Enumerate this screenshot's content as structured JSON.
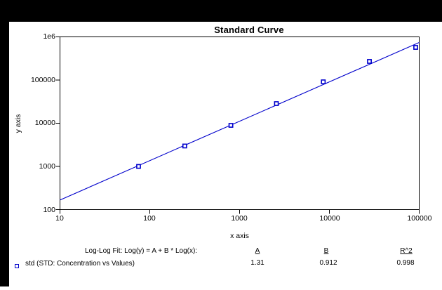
{
  "window": {
    "border_color": "#000000",
    "panel_color": "#ffffff"
  },
  "title": "Standard Curve",
  "axes": {
    "x_label": "x axis",
    "y_label": "y axis",
    "x_range": [
      10,
      100000
    ],
    "y_range": [
      100,
      1000000
    ],
    "x_ticks": [
      {
        "label": "10",
        "value": 10
      },
      {
        "label": "100",
        "value": 100
      },
      {
        "label": "1000",
        "value": 1000
      },
      {
        "label": "10000",
        "value": 10000
      },
      {
        "label": "100000",
        "value": 100000
      }
    ],
    "y_ticks": [
      {
        "label": "1e6",
        "value": 1000000
      },
      {
        "label": "100000",
        "value": 100000
      },
      {
        "label": "10000",
        "value": 10000
      },
      {
        "label": "1000",
        "value": 1000
      },
      {
        "label": "100",
        "value": 100
      }
    ]
  },
  "chart_data": {
    "type": "scatter",
    "title": "Standard Curve",
    "xlabel": "x axis",
    "ylabel": "y axis",
    "x_scale": "log",
    "y_scale": "log",
    "xlim": [
      10,
      100000
    ],
    "ylim": [
      100,
      1000000
    ],
    "grid": false,
    "series": [
      {
        "name": "std",
        "marker": "open-square",
        "color": "#0000cc",
        "x": [
          75,
          245,
          800,
          2570,
          8550,
          27900,
          91400
        ],
        "y": [
          1000,
          2970,
          8930,
          28500,
          91000,
          270000,
          570000
        ]
      }
    ],
    "fit": {
      "type": "log-log",
      "equation": "Log(y) = A + B * Log(x)",
      "A": 1.31,
      "B": 0.912,
      "R2": 0.998,
      "color": "#0000cc"
    }
  },
  "footer": {
    "fit_label": "Log-Log Fit: Log(y) = A + B * Log(x):",
    "columns": [
      {
        "header": "A",
        "value": "1.31"
      },
      {
        "header": "B",
        "value": "0.912"
      },
      {
        "header": "R^2",
        "value": "0.998"
      }
    ],
    "legend": {
      "label": "std (STD: Concentration vs Values)",
      "marker_color": "#0000cc"
    }
  }
}
